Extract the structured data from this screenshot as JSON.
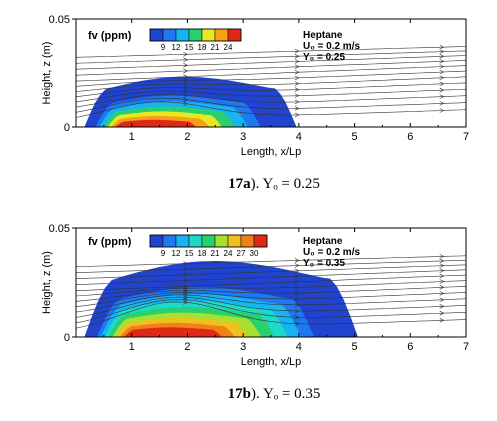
{
  "chart_data": [
    {
      "type": "contour",
      "xlabel": "Length, x/Lp",
      "ylabel": "Height, z (m)",
      "xlim": [
        0,
        7
      ],
      "ylim": [
        0,
        0.05
      ],
      "xticks": [
        "1",
        "2",
        "3",
        "4",
        "5",
        "6",
        "7"
      ],
      "yticks": [
        "0",
        "0.05"
      ],
      "legend": {
        "title": "fv (ppm)",
        "ticks": [
          "9",
          "12",
          "15",
          "18",
          "21",
          "24"
        ],
        "colors": [
          "#2044d0",
          "#1e78f0",
          "#16b4f0",
          "#2ad070",
          "#e8e820",
          "#f8a018",
          "#e02818"
        ]
      },
      "annotation": {
        "line1": "Heptane",
        "line2": "U₀ = 0.2 m/s",
        "line3": "Y₀ = 0.25"
      },
      "soot_region": {
        "x_extent": [
          0.15,
          3.95
        ],
        "peak_x": 1.45,
        "peak_height": 0.024
      },
      "caption": {
        "bold": "17a",
        "text": "). Yₒ = 0.25"
      }
    },
    {
      "type": "contour",
      "xlabel": "Length, x/Lp",
      "ylabel": "Height, z (m)",
      "xlim": [
        0,
        7
      ],
      "ylim": [
        0,
        0.05
      ],
      "xticks": [
        "1",
        "2",
        "3",
        "4",
        "5",
        "6",
        "7"
      ],
      "yticks": [
        "0",
        "0.05"
      ],
      "legend": {
        "title": "fv (ppm)",
        "ticks": [
          "9",
          "12",
          "15",
          "18",
          "21",
          "24",
          "27",
          "30"
        ],
        "colors": [
          "#2044d0",
          "#1e78f0",
          "#16b4f0",
          "#1ed8c8",
          "#2ad070",
          "#a8e030",
          "#f0c020",
          "#f08018",
          "#e02818"
        ]
      },
      "annotation": {
        "line1": "Heptane",
        "line2": "U₀ = 0.2 m/s",
        "line3": "Y₀ = 0.35"
      },
      "soot_region": {
        "x_extent": [
          0.15,
          5.05
        ],
        "peak_x": 1.75,
        "peak_height": 0.036
      },
      "caption": {
        "bold": "17b",
        "text": "). Yₒ = 0.35"
      }
    }
  ]
}
